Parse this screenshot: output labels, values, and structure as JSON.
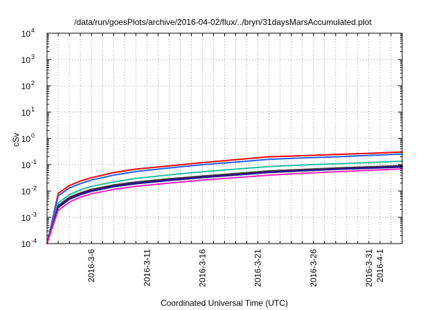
{
  "chart_data": {
    "type": "line",
    "title": "/data/run/goesPlots/archive/2016-04-02/flux/../bryn/31daysMarsAccumulated.plot",
    "xlabel": "Coordinated Universal Time (UTC)",
    "ylabel": "cSv",
    "yscale": "log",
    "ylim": [
      0.0001,
      10000
    ],
    "xlim": [
      "2016-03-02",
      "2016-04-03"
    ],
    "grid": true,
    "x_ticks": [
      "2016-3-6",
      "2016-3-11",
      "2016-3-16",
      "2016-3-21",
      "2016-3-26",
      "2016-3-31",
      "2016-4-1"
    ],
    "y_ticks": [
      {
        "base": "10",
        "exp": "-4",
        "value": 0.0001
      },
      {
        "base": "10",
        "exp": "-3",
        "value": 0.001
      },
      {
        "base": "10",
        "exp": "-2",
        "value": 0.01
      },
      {
        "base": "10",
        "exp": "-1",
        "value": 0.1
      },
      {
        "base": "10",
        "exp": "0",
        "value": 1
      },
      {
        "base": "10",
        "exp": "1",
        "value": 10
      },
      {
        "base": "10",
        "exp": "2",
        "value": 100
      },
      {
        "base": "10",
        "exp": "3",
        "value": 1000
      },
      {
        "base": "10",
        "exp": "4",
        "value": 10000
      }
    ],
    "x": [
      "2016-03-02",
      "2016-03-03",
      "2016-03-04",
      "2016-03-05",
      "2016-03-06",
      "2016-03-08",
      "2016-03-10",
      "2016-03-13",
      "2016-03-16",
      "2016-03-19",
      "2016-03-22",
      "2016-03-25",
      "2016-03-28",
      "2016-03-31",
      "2016-04-03"
    ],
    "series": [
      {
        "color": "#ff0000",
        "values": [
          0.0001,
          0.008,
          0.016,
          0.024,
          0.032,
          0.05,
          0.068,
          0.09,
          0.12,
          0.155,
          0.2,
          0.22,
          0.245,
          0.27,
          0.305
        ]
      },
      {
        "color": "#1f5fff",
        "values": [
          0.0001,
          0.0065,
          0.013,
          0.019,
          0.026,
          0.04,
          0.055,
          0.075,
          0.1,
          0.125,
          0.16,
          0.18,
          0.2,
          0.225,
          0.255
        ]
      },
      {
        "color": "#1fbf9f",
        "values": [
          0.0001,
          0.0035,
          0.0072,
          0.011,
          0.015,
          0.022,
          0.03,
          0.041,
          0.054,
          0.068,
          0.085,
          0.097,
          0.108,
          0.12,
          0.135
        ]
      },
      {
        "color": "#404040",
        "values": [
          0.0001,
          0.0028,
          0.0058,
          0.0085,
          0.0115,
          0.017,
          0.022,
          0.029,
          0.037,
          0.046,
          0.058,
          0.066,
          0.075,
          0.083,
          0.093
        ]
      },
      {
        "color": "#3f006f",
        "values": [
          0.0001,
          0.0025,
          0.0052,
          0.0078,
          0.0105,
          0.0155,
          0.02,
          0.027,
          0.034,
          0.042,
          0.053,
          0.061,
          0.069,
          0.077,
          0.086
        ]
      },
      {
        "color": "#1f1f8f",
        "values": [
          0.0001,
          0.0023,
          0.0048,
          0.0072,
          0.0097,
          0.0145,
          0.0188,
          0.025,
          0.032,
          0.04,
          0.05,
          0.058,
          0.066,
          0.073,
          0.081
        ]
      },
      {
        "color": "#ff1fbf",
        "values": [
          0.0001,
          0.0018,
          0.0038,
          0.0058,
          0.0078,
          0.0115,
          0.015,
          0.02,
          0.026,
          0.032,
          0.04,
          0.047,
          0.054,
          0.061,
          0.069
        ]
      }
    ]
  }
}
